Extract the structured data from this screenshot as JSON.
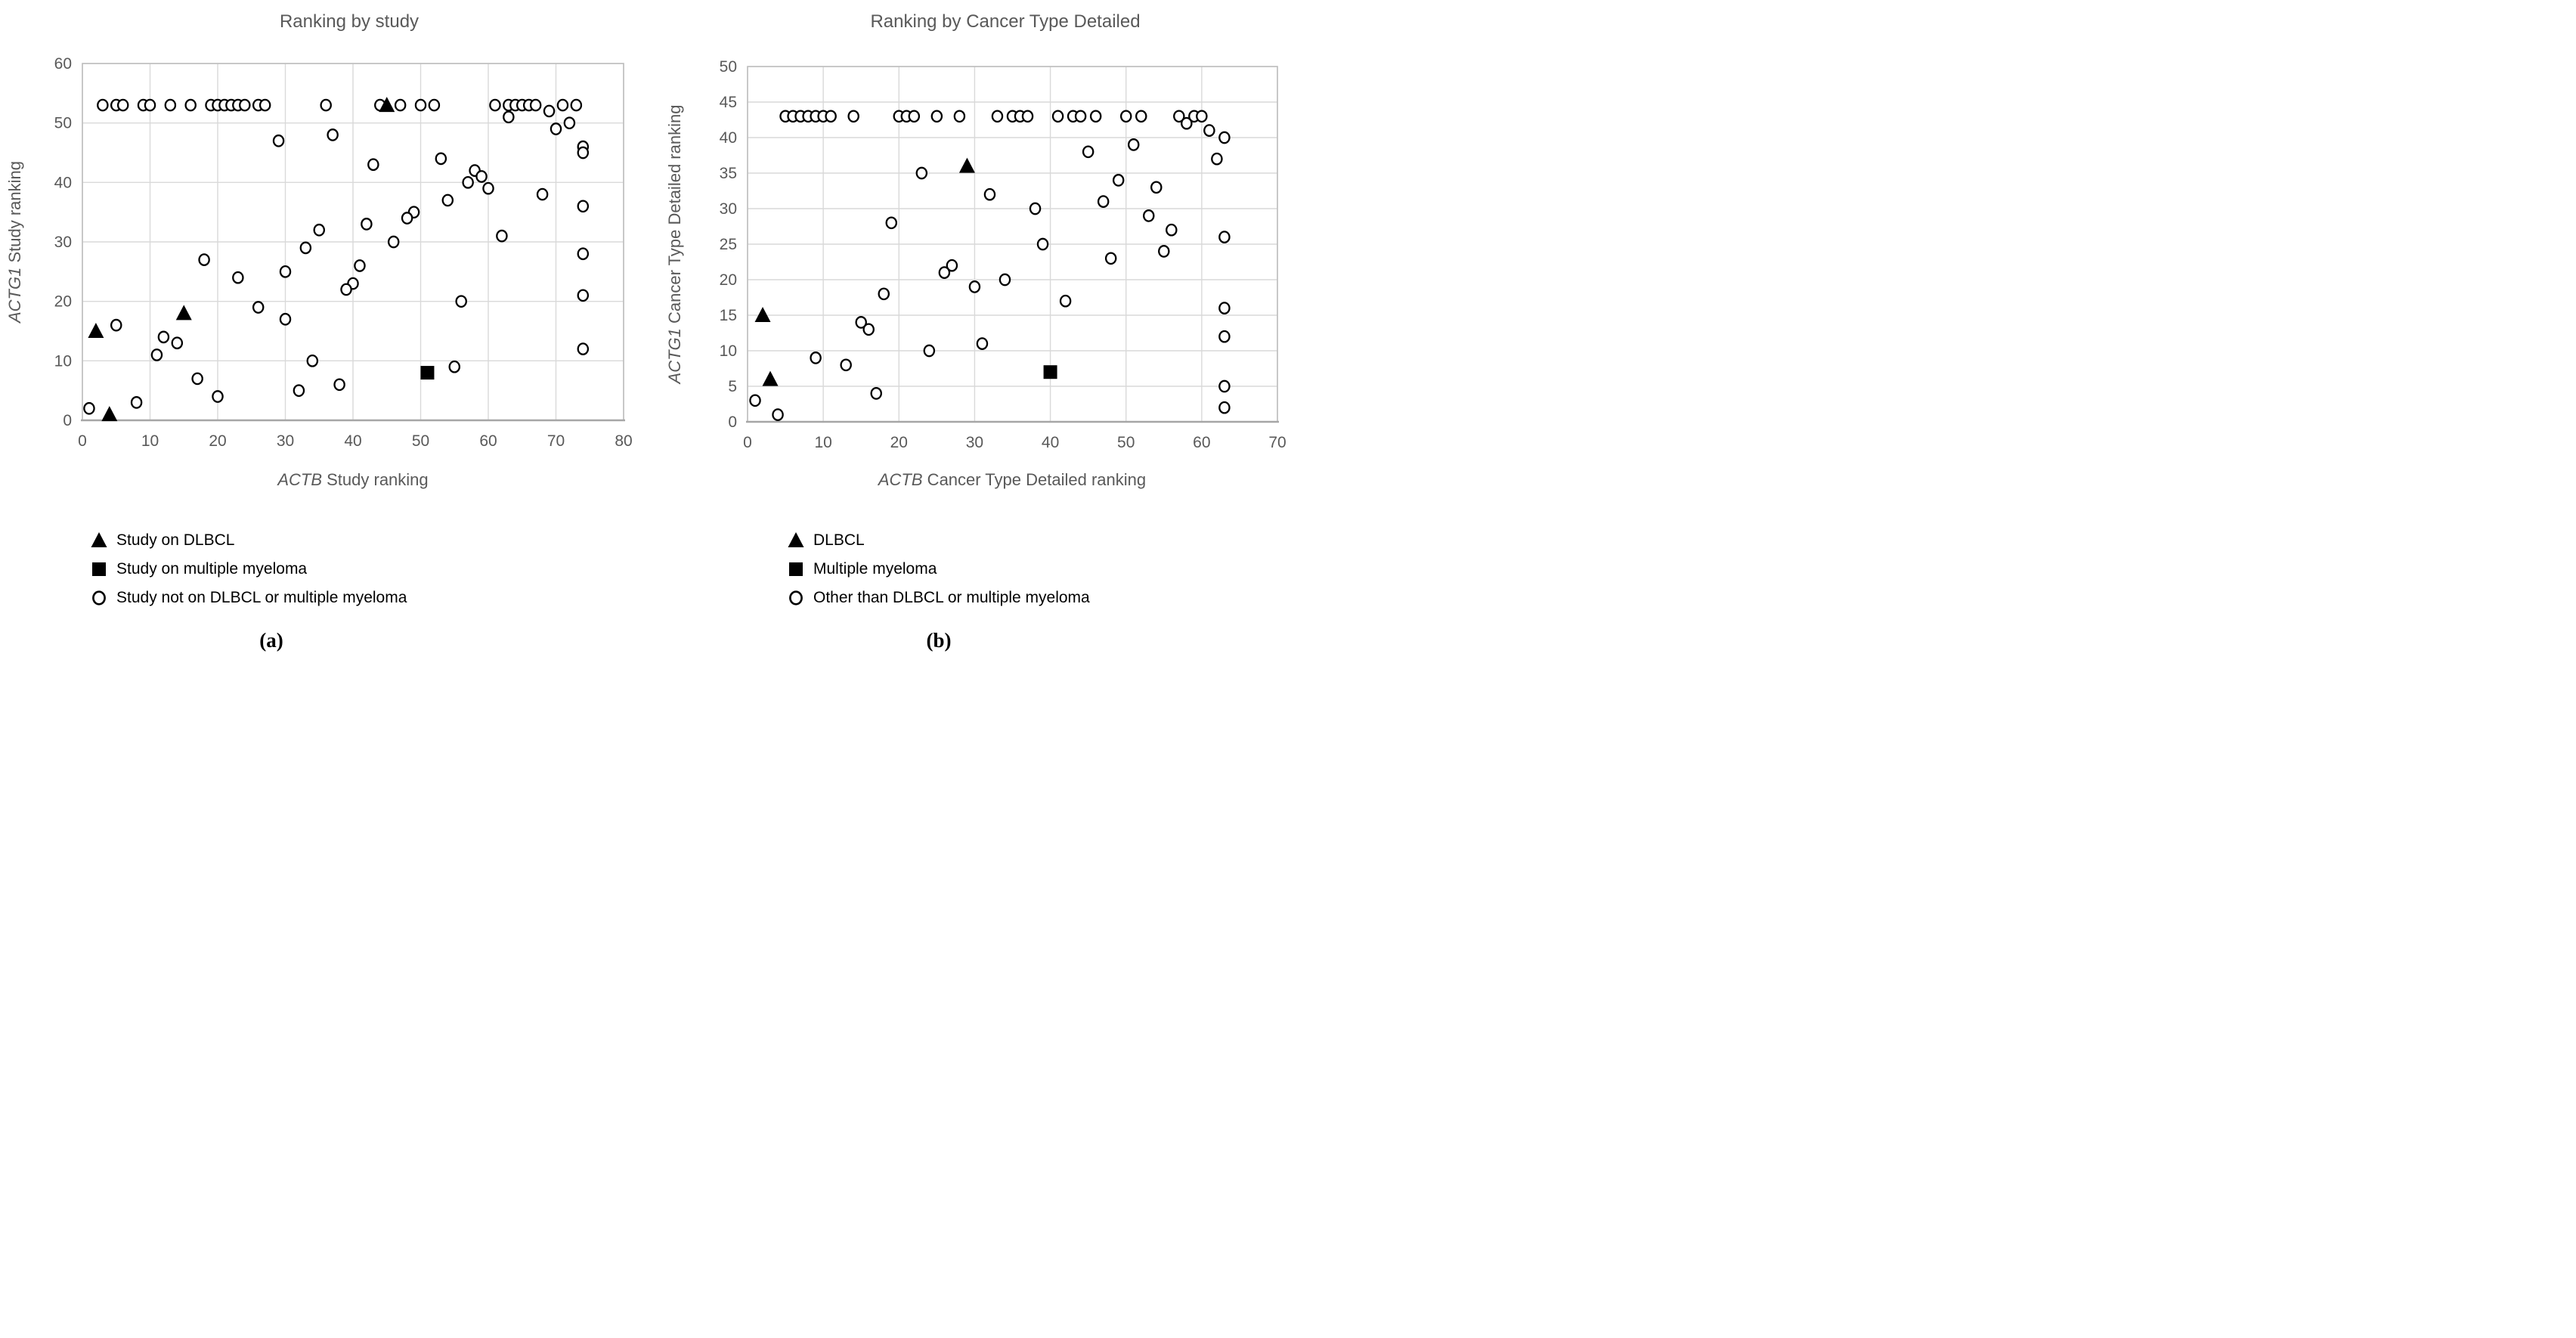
{
  "page": {
    "background": "#ffffff"
  },
  "colors": {
    "text": "#595959",
    "legend_text": "#000000",
    "grid": "#d9d9d9",
    "border": "#bfbfbf",
    "axis": "#a6a6a6",
    "marker": "#000000",
    "marker_fill": "#ffffff"
  },
  "captions": {
    "a": "(a)",
    "b": "(b)"
  },
  "chart_data": [
    {
      "type": "scatter",
      "title": "Ranking by study",
      "xlabel": {
        "italic": "ACTB",
        "rest": " Study ranking"
      },
      "ylabel": {
        "italic": "ACTG1",
        "rest": " Study ranking"
      },
      "xlim": [
        0,
        80
      ],
      "xticks": [
        0,
        10,
        20,
        30,
        40,
        50,
        60,
        70,
        80
      ],
      "ylim": [
        0,
        60
      ],
      "yticks": [
        0,
        10,
        20,
        30,
        40,
        50,
        60
      ],
      "grid": true,
      "legend_position": "below-left",
      "series": [
        {
          "name": "Study on DLBCL",
          "marker": "triangle",
          "points": [
            [
              2,
              15
            ],
            [
              4,
              1
            ],
            [
              15,
              18
            ],
            [
              45,
              53
            ]
          ]
        },
        {
          "name": "Study on multiple myeloma",
          "marker": "square",
          "points": [
            [
              51,
              8
            ]
          ]
        },
        {
          "name": "Study not on DLBCL or multiple myeloma",
          "marker": "circle",
          "points": [
            [
              3,
              53
            ],
            [
              5,
              53
            ],
            [
              6,
              53
            ],
            [
              9,
              53
            ],
            [
              10,
              53
            ],
            [
              13,
              53
            ],
            [
              16,
              53
            ],
            [
              19,
              53
            ],
            [
              20,
              53
            ],
            [
              21,
              53
            ],
            [
              22,
              53
            ],
            [
              23,
              53
            ],
            [
              24,
              53
            ],
            [
              26,
              53
            ],
            [
              27,
              53
            ],
            [
              36,
              53
            ],
            [
              44,
              53
            ],
            [
              47,
              53
            ],
            [
              50,
              53
            ],
            [
              52,
              53
            ],
            [
              61,
              53
            ],
            [
              63,
              53
            ],
            [
              64,
              53
            ],
            [
              65,
              53
            ],
            [
              66,
              53
            ],
            [
              67,
              53
            ],
            [
              71,
              53
            ],
            [
              73,
              53
            ],
            [
              69,
              52
            ],
            [
              63,
              51
            ],
            [
              72,
              50
            ],
            [
              70,
              49
            ],
            [
              37,
              48
            ],
            [
              29,
              47
            ],
            [
              74,
              46
            ],
            [
              74,
              45
            ],
            [
              74,
              36
            ],
            [
              74,
              28
            ],
            [
              74,
              21
            ],
            [
              74,
              12
            ],
            [
              43,
              43
            ],
            [
              53,
              44
            ],
            [
              58,
              42
            ],
            [
              59,
              41
            ],
            [
              57,
              40
            ],
            [
              60,
              39
            ],
            [
              68,
              38
            ],
            [
              54,
              37
            ],
            [
              49,
              35
            ],
            [
              48,
              34
            ],
            [
              42,
              33
            ],
            [
              35,
              32
            ],
            [
              62,
              31
            ],
            [
              46,
              30
            ],
            [
              33,
              29
            ],
            [
              18,
              27
            ],
            [
              41,
              26
            ],
            [
              30,
              25
            ],
            [
              23,
              24
            ],
            [
              40,
              23
            ],
            [
              39,
              22
            ],
            [
              56,
              20
            ],
            [
              26,
              19
            ],
            [
              30,
              17
            ],
            [
              34,
              10
            ],
            [
              1,
              2
            ],
            [
              8,
              3
            ],
            [
              11,
              11
            ],
            [
              12,
              14
            ],
            [
              14,
              13
            ],
            [
              5,
              16
            ],
            [
              17,
              7
            ],
            [
              20,
              4
            ],
            [
              32,
              5
            ],
            [
              38,
              6
            ],
            [
              55,
              9
            ]
          ]
        }
      ]
    },
    {
      "type": "scatter",
      "title": "Ranking by Cancer Type Detailed",
      "xlabel": {
        "italic": "ACTB",
        "rest": " Cancer Type Detailed ranking"
      },
      "ylabel": {
        "italic": "ACTG1",
        "rest": " Cancer Type Detailed ranking"
      },
      "xlim": [
        0,
        70
      ],
      "xticks": [
        0,
        10,
        20,
        30,
        40,
        50,
        60,
        70
      ],
      "ylim": [
        0,
        50
      ],
      "yticks": [
        0,
        5,
        10,
        15,
        20,
        25,
        30,
        35,
        40,
        45,
        50
      ],
      "grid": true,
      "legend_position": "below-left",
      "series": [
        {
          "name": "DLBCL",
          "marker": "triangle",
          "points": [
            [
              2,
              15
            ],
            [
              3,
              6
            ],
            [
              29,
              36
            ]
          ]
        },
        {
          "name": "Multiple myeloma",
          "marker": "square",
          "points": [
            [
              40,
              7
            ]
          ]
        },
        {
          "name": "Other than DLBCL or multiple myeloma",
          "marker": "circle",
          "points": [
            [
              5,
              43
            ],
            [
              6,
              43
            ],
            [
              7,
              43
            ],
            [
              8,
              43
            ],
            [
              9,
              43
            ],
            [
              10,
              43
            ],
            [
              11,
              43
            ],
            [
              14,
              43
            ],
            [
              20,
              43
            ],
            [
              21,
              43
            ],
            [
              22,
              43
            ],
            [
              25,
              43
            ],
            [
              28,
              43
            ],
            [
              33,
              43
            ],
            [
              35,
              43
            ],
            [
              36,
              43
            ],
            [
              37,
              43
            ],
            [
              41,
              43
            ],
            [
              43,
              43
            ],
            [
              44,
              43
            ],
            [
              46,
              43
            ],
            [
              50,
              43
            ],
            [
              52,
              43
            ],
            [
              57,
              43
            ],
            [
              59,
              43
            ],
            [
              60,
              43
            ],
            [
              58,
              42
            ],
            [
              61,
              41
            ],
            [
              63,
              40
            ],
            [
              62,
              37
            ],
            [
              63,
              26
            ],
            [
              63,
              16
            ],
            [
              63,
              12
            ],
            [
              63,
              5
            ],
            [
              63,
              2
            ],
            [
              23,
              35
            ],
            [
              32,
              32
            ],
            [
              38,
              30
            ],
            [
              45,
              38
            ],
            [
              51,
              39
            ],
            [
              49,
              34
            ],
            [
              54,
              33
            ],
            [
              47,
              31
            ],
            [
              53,
              29
            ],
            [
              56,
              27
            ],
            [
              55,
              24
            ],
            [
              48,
              23
            ],
            [
              39,
              25
            ],
            [
              19,
              28
            ],
            [
              27,
              22
            ],
            [
              26,
              21
            ],
            [
              34,
              20
            ],
            [
              30,
              19
            ],
            [
              18,
              18
            ],
            [
              42,
              17
            ],
            [
              31,
              11
            ],
            [
              24,
              10
            ],
            [
              15,
              14
            ],
            [
              16,
              13
            ],
            [
              9,
              9
            ],
            [
              13,
              8
            ],
            [
              17,
              4
            ],
            [
              1,
              3
            ],
            [
              4,
              1
            ]
          ]
        }
      ]
    }
  ]
}
